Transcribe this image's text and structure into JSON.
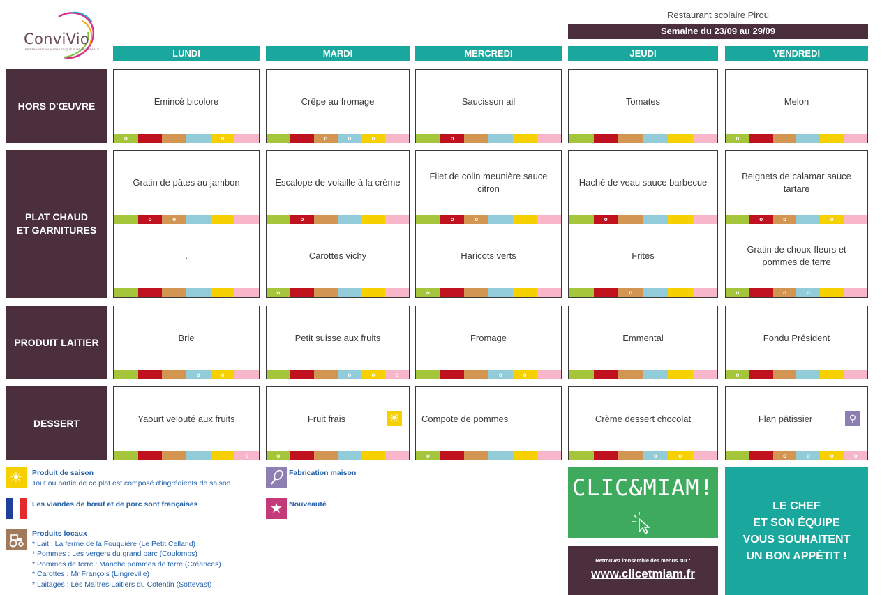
{
  "logo": {
    "name": "ConviVio",
    "tagline": "RESTAURATION AUTHENTIQUE & RESPONSABLE"
  },
  "restaurant": "Restaurant scolaire Pirou",
  "week": "Semaine du 23/09 au 29/09",
  "days": [
    "LUNDI",
    "MARDI",
    "MERCREDI",
    "JEUDI",
    "VENDREDI"
  ],
  "rows": {
    "hors_doeuvre": {
      "label": "HORS D'ŒUVRE",
      "dishes": [
        "Emincé bicolore",
        "Crêpe au fromage",
        "Saucisson ail",
        "Tomates",
        "Melon"
      ],
      "marks": [
        [
          0,
          4
        ],
        [
          2,
          3,
          4
        ],
        [
          1
        ],
        [],
        [
          0
        ]
      ]
    },
    "plat_chaud": {
      "label": "PLAT CHAUD\nET GARNITURES",
      "dishes": [
        "Gratin de pâtes au jambon",
        "Escalope de volaille à la crème",
        "Filet de colin meunière sauce citron",
        "Haché de veau sauce barbecue",
        "Beignets de calamar sauce tartare"
      ],
      "marks": [
        [
          1,
          2
        ],
        [
          1
        ],
        [
          1,
          2
        ],
        [
          1
        ],
        [
          1,
          2,
          4
        ]
      ]
    },
    "garnitures": {
      "dishes": [
        ".",
        "Carottes vichy",
        "Haricots verts",
        "Frites",
        "Gratin de choux-fleurs et pommes de terre"
      ],
      "marks": [
        [],
        [
          0
        ],
        [
          0
        ],
        [
          2
        ],
        [
          0,
          2,
          3
        ]
      ]
    },
    "produit_laitier": {
      "label": "PRODUIT LAITIER",
      "dishes": [
        "Brie",
        "Petit suisse aux fruits",
        "Fromage",
        "Emmental",
        "Fondu Président"
      ],
      "marks": [
        [
          3,
          4
        ],
        [
          3,
          4,
          5
        ],
        [
          3,
          4
        ],
        [],
        [
          0
        ]
      ]
    },
    "dessert": {
      "label": "DESSERT",
      "dishes": [
        "Yaourt velouté aux fruits",
        "Fruit frais",
        "Compote de pommes",
        "Crème dessert chocolat",
        "Flan pâtissier"
      ],
      "marks": [
        [
          5
        ],
        [
          0
        ],
        [
          0
        ],
        [
          3,
          4
        ],
        [
          2,
          3,
          4,
          5
        ]
      ],
      "icons": [
        "",
        "sun-icon",
        "",
        "",
        "whisk-icon"
      ]
    }
  },
  "mark_symbol": "o",
  "legend": {
    "saison_title": "Produit de saison",
    "saison_desc": "Tout ou partie de ce plat est composé d'ingrédients de saison",
    "viandes": "Les viandes de bœuf et de porc sont françaises",
    "locaux_title": "Produits locaux",
    "locaux_items": [
      "* Lait : La ferme de la Fouquière (Le Petit Celland)",
      "* Pommes : Les vergers du grand parc (Coulombs)",
      "* Pommes de terre : Manche pommes de terre (Créances)",
      "* Carottes : Mr François (Lingreville)",
      "* Laitages : Les Maîtres Laitiers du Cotentin (Sottevast)"
    ],
    "fabrication": "Fabrication maison",
    "nouveaute": "Nouveauté"
  },
  "clic": {
    "text": "CLIC&MIAM!",
    "small": "Retrouvez l'ensemble des menus sur :",
    "url": "www.clicetmiam.fr"
  },
  "chef_lines": [
    "LE CHEF",
    "ET SON ÉQUIPE",
    "VOUS SOUHAITENT",
    "UN BON APPÉTIT !"
  ],
  "colors": {
    "plum": "#4b2f3d",
    "teal": "#1aa79e",
    "green": "#3daa5d",
    "strip": [
      "#a5c63b",
      "#c0111f",
      "#d29552",
      "#92ccd9",
      "#f7d000",
      "#f8b6cb"
    ]
  }
}
